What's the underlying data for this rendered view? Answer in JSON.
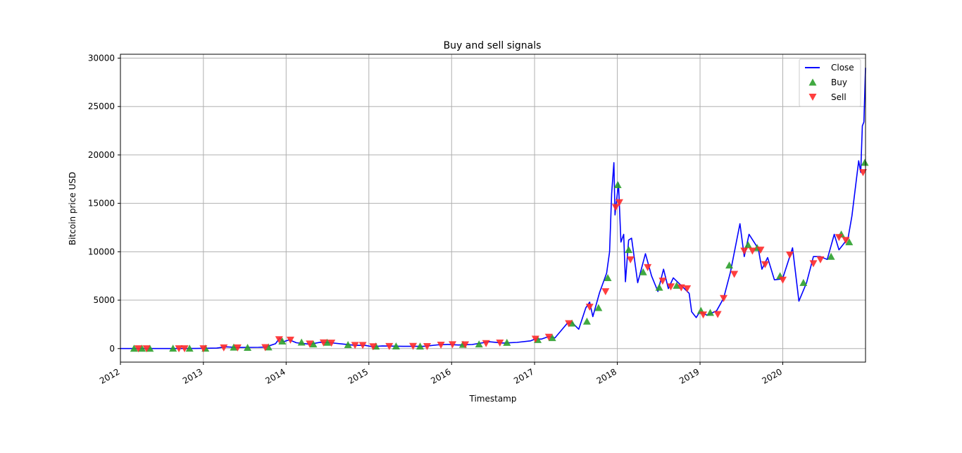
{
  "chart_data": {
    "type": "line",
    "title": "Buy and sell signals",
    "xlabel": "Timestamp",
    "ylabel": "Bitcoin price USD",
    "xlim": [
      "2012-01-01",
      "2020-12-31"
    ],
    "ylim": [
      -1400,
      30400
    ],
    "x_ticks": [
      "2012",
      "2013",
      "2014",
      "2015",
      "2016",
      "2017",
      "2018",
      "2019",
      "2020"
    ],
    "y_ticks": [
      0,
      5000,
      10000,
      15000,
      20000,
      25000,
      30000
    ],
    "grid": true,
    "legend_position": "top-right",
    "colors": {
      "close": "#0000ff",
      "buy": "#2ca02c",
      "sell": "#ff2a2a",
      "grid": "#b0b0b0"
    },
    "series": [
      {
        "name": "Close",
        "type": "line",
        "points": [
          [
            "2012-01-01",
            5
          ],
          [
            "2012-06-01",
            6
          ],
          [
            "2012-12-01",
            13
          ],
          [
            "2013-03-01",
            50
          ],
          [
            "2013-04-10",
            180
          ],
          [
            "2013-06-01",
            110
          ],
          [
            "2013-09-01",
            130
          ],
          [
            "2013-10-01",
            150
          ],
          [
            "2013-11-15",
            500
          ],
          [
            "2013-12-04",
            1100
          ],
          [
            "2013-12-20",
            700
          ],
          [
            "2014-01-15",
            900
          ],
          [
            "2014-02-15",
            600
          ],
          [
            "2014-04-15",
            450
          ],
          [
            "2014-06-01",
            650
          ],
          [
            "2014-07-15",
            600
          ],
          [
            "2014-09-15",
            450
          ],
          [
            "2014-11-01",
            330
          ],
          [
            "2014-12-15",
            330
          ],
          [
            "2015-01-15",
            200
          ],
          [
            "2015-03-01",
            270
          ],
          [
            "2015-06-01",
            230
          ],
          [
            "2015-09-01",
            230
          ],
          [
            "2015-11-01",
            380
          ],
          [
            "2015-12-15",
            430
          ],
          [
            "2016-02-01",
            370
          ],
          [
            "2016-04-01",
            420
          ],
          [
            "2016-06-15",
            700
          ],
          [
            "2016-08-15",
            570
          ],
          [
            "2016-10-15",
            640
          ],
          [
            "2016-12-15",
            800
          ],
          [
            "2017-01-05",
            1000
          ],
          [
            "2017-02-01",
            980
          ],
          [
            "2017-03-05",
            1250
          ],
          [
            "2017-04-01",
            1100
          ],
          [
            "2017-05-25",
            2600
          ],
          [
            "2017-06-15",
            2700
          ],
          [
            "2017-07-15",
            2000
          ],
          [
            "2017-08-15",
            4200
          ],
          [
            "2017-09-01",
            4800
          ],
          [
            "2017-09-15",
            3300
          ],
          [
            "2017-10-15",
            5800
          ],
          [
            "2017-11-15",
            7800
          ],
          [
            "2017-11-28",
            10000
          ],
          [
            "2017-12-07",
            16000
          ],
          [
            "2017-12-17",
            19200
          ],
          [
            "2017-12-22",
            13800
          ],
          [
            "2018-01-06",
            17100
          ],
          [
            "2018-01-17",
            11000
          ],
          [
            "2018-01-29",
            11800
          ],
          [
            "2018-02-06",
            6900
          ],
          [
            "2018-02-20",
            11200
          ],
          [
            "2018-03-05",
            11400
          ],
          [
            "2018-04-01",
            6800
          ],
          [
            "2018-05-05",
            9800
          ],
          [
            "2018-06-01",
            7500
          ],
          [
            "2018-06-29",
            5900
          ],
          [
            "2018-07-24",
            8200
          ],
          [
            "2018-08-14",
            6200
          ],
          [
            "2018-09-05",
            7300
          ],
          [
            "2018-10-15",
            6400
          ],
          [
            "2018-11-14",
            5700
          ],
          [
            "2018-11-25",
            3800
          ],
          [
            "2018-12-15",
            3200
          ],
          [
            "2018-12-31",
            3800
          ],
          [
            "2019-02-01",
            3450
          ],
          [
            "2019-03-15",
            3900
          ],
          [
            "2019-04-15",
            5200
          ],
          [
            "2019-05-15",
            7900
          ],
          [
            "2019-06-26",
            12900
          ],
          [
            "2019-07-15",
            9500
          ],
          [
            "2019-08-05",
            11800
          ],
          [
            "2019-09-15",
            10300
          ],
          [
            "2019-10-01",
            8200
          ],
          [
            "2019-10-26",
            9400
          ],
          [
            "2019-11-25",
            7100
          ],
          [
            "2019-12-31",
            7200
          ],
          [
            "2020-02-13",
            10400
          ],
          [
            "2020-03-12",
            4900
          ],
          [
            "2020-04-15",
            6800
          ],
          [
            "2020-05-15",
            9500
          ],
          [
            "2020-06-15",
            9500
          ],
          [
            "2020-07-15",
            9200
          ],
          [
            "2020-08-15",
            11800
          ],
          [
            "2020-09-05",
            10200
          ],
          [
            "2020-10-15",
            11400
          ],
          [
            "2020-11-01",
            13700
          ],
          [
            "2020-12-01",
            19400
          ],
          [
            "2020-12-10",
            18200
          ],
          [
            "2020-12-17",
            23000
          ],
          [
            "2020-12-24",
            23400
          ],
          [
            "2020-12-31",
            29000
          ]
        ]
      },
      {
        "name": "Buy",
        "type": "scatter",
        "marker": "triangle-up",
        "points": [
          [
            "2012-03-01",
            5
          ],
          [
            "2012-04-05",
            5
          ],
          [
            "2012-05-10",
            5
          ],
          [
            "2012-08-20",
            10
          ],
          [
            "2012-11-01",
            11
          ],
          [
            "2013-01-10",
            14
          ],
          [
            "2013-05-15",
            120
          ],
          [
            "2013-07-15",
            90
          ],
          [
            "2013-10-15",
            140
          ],
          [
            "2013-12-15",
            750
          ],
          [
            "2014-03-10",
            640
          ],
          [
            "2014-05-01",
            450
          ],
          [
            "2014-07-01",
            620
          ],
          [
            "2014-10-01",
            380
          ],
          [
            "2015-02-01",
            230
          ],
          [
            "2015-05-01",
            240
          ],
          [
            "2015-08-15",
            230
          ],
          [
            "2016-02-20",
            410
          ],
          [
            "2016-05-01",
            450
          ],
          [
            "2016-09-01",
            610
          ],
          [
            "2017-01-15",
            900
          ],
          [
            "2017-03-20",
            1100
          ],
          [
            "2017-06-15",
            2600
          ],
          [
            "2017-08-20",
            2800
          ],
          [
            "2017-10-10",
            4200
          ],
          [
            "2017-11-20",
            7300
          ],
          [
            "2018-01-03",
            16900
          ],
          [
            "2018-02-20",
            10200
          ],
          [
            "2018-04-25",
            7900
          ],
          [
            "2018-07-05",
            6300
          ],
          [
            "2018-09-20",
            6500
          ],
          [
            "2019-01-05",
            3900
          ],
          [
            "2019-02-15",
            3700
          ],
          [
            "2019-05-10",
            8600
          ],
          [
            "2019-08-01",
            10700
          ],
          [
            "2019-09-10",
            10400
          ],
          [
            "2019-12-20",
            7500
          ],
          [
            "2020-04-01",
            6800
          ],
          [
            "2020-08-01",
            9500
          ],
          [
            "2020-09-15",
            11800
          ],
          [
            "2020-10-20",
            11000
          ],
          [
            "2020-12-28",
            19200
          ]
        ]
      },
      {
        "name": "Sell",
        "type": "scatter",
        "marker": "triangle-down",
        "points": [
          [
            "2012-03-20",
            6
          ],
          [
            "2012-04-25",
            6
          ],
          [
            "2012-09-15",
            11
          ],
          [
            "2012-10-10",
            12
          ],
          [
            "2013-01-01",
            13
          ],
          [
            "2013-04-01",
            100
          ],
          [
            "2013-06-01",
            100
          ],
          [
            "2013-10-01",
            130
          ],
          [
            "2013-12-01",
            950
          ],
          [
            "2014-01-20",
            900
          ],
          [
            "2014-04-15",
            500
          ],
          [
            "2014-06-15",
            620
          ],
          [
            "2014-07-20",
            590
          ],
          [
            "2014-11-01",
            360
          ],
          [
            "2014-12-05",
            360
          ],
          [
            "2015-01-20",
            220
          ],
          [
            "2015-04-01",
            250
          ],
          [
            "2015-07-15",
            260
          ],
          [
            "2015-09-15",
            240
          ],
          [
            "2015-11-15",
            380
          ],
          [
            "2016-01-05",
            430
          ],
          [
            "2016-03-01",
            420
          ],
          [
            "2016-06-01",
            550
          ],
          [
            "2016-08-01",
            600
          ],
          [
            "2017-01-05",
            1000
          ],
          [
            "2017-03-05",
            1200
          ],
          [
            "2017-06-01",
            2600
          ],
          [
            "2017-09-01",
            4300
          ],
          [
            "2017-11-10",
            5900
          ],
          [
            "2017-12-25",
            14600
          ],
          [
            "2018-01-10",
            15100
          ],
          [
            "2018-02-28",
            9200
          ],
          [
            "2018-05-15",
            8400
          ],
          [
            "2018-07-20",
            7000
          ],
          [
            "2018-08-25",
            6400
          ],
          [
            "2018-10-10",
            6300
          ],
          [
            "2018-11-05",
            6200
          ],
          [
            "2019-01-15",
            3500
          ],
          [
            "2019-03-20",
            3550
          ],
          [
            "2019-04-15",
            5200
          ],
          [
            "2019-06-01",
            7700
          ],
          [
            "2019-07-15",
            10100
          ],
          [
            "2019-08-20",
            10100
          ],
          [
            "2019-09-25",
            10200
          ],
          [
            "2019-10-15",
            8700
          ],
          [
            "2020-01-01",
            7100
          ],
          [
            "2020-02-01",
            9700
          ],
          [
            "2020-05-15",
            8800
          ],
          [
            "2020-06-15",
            9200
          ],
          [
            "2020-09-05",
            11500
          ],
          [
            "2020-10-05",
            11200
          ],
          [
            "2020-12-20",
            18200
          ]
        ]
      }
    ]
  }
}
